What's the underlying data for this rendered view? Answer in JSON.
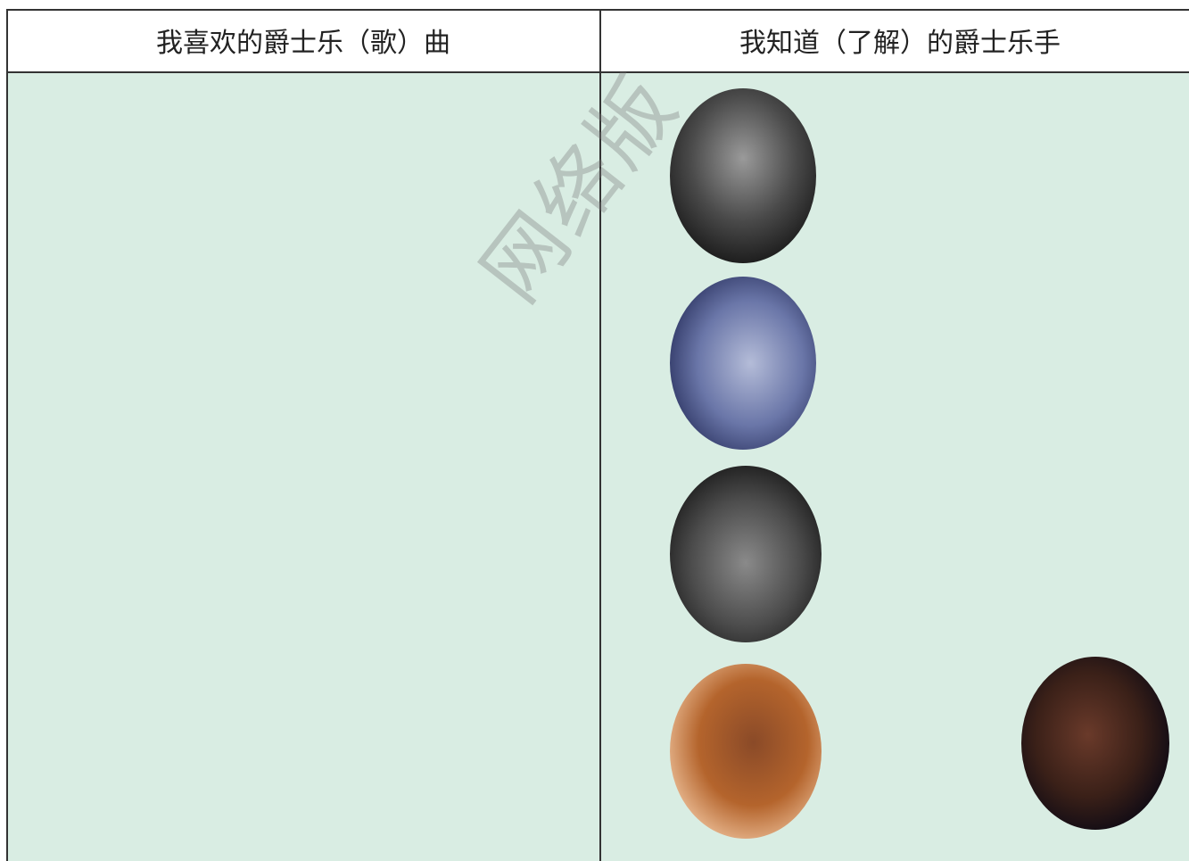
{
  "table": {
    "headers": [
      "我喜欢的爵士乐（歌）曲",
      "我知道（了解）的爵士乐手"
    ]
  },
  "watermark": "网络版"
}
